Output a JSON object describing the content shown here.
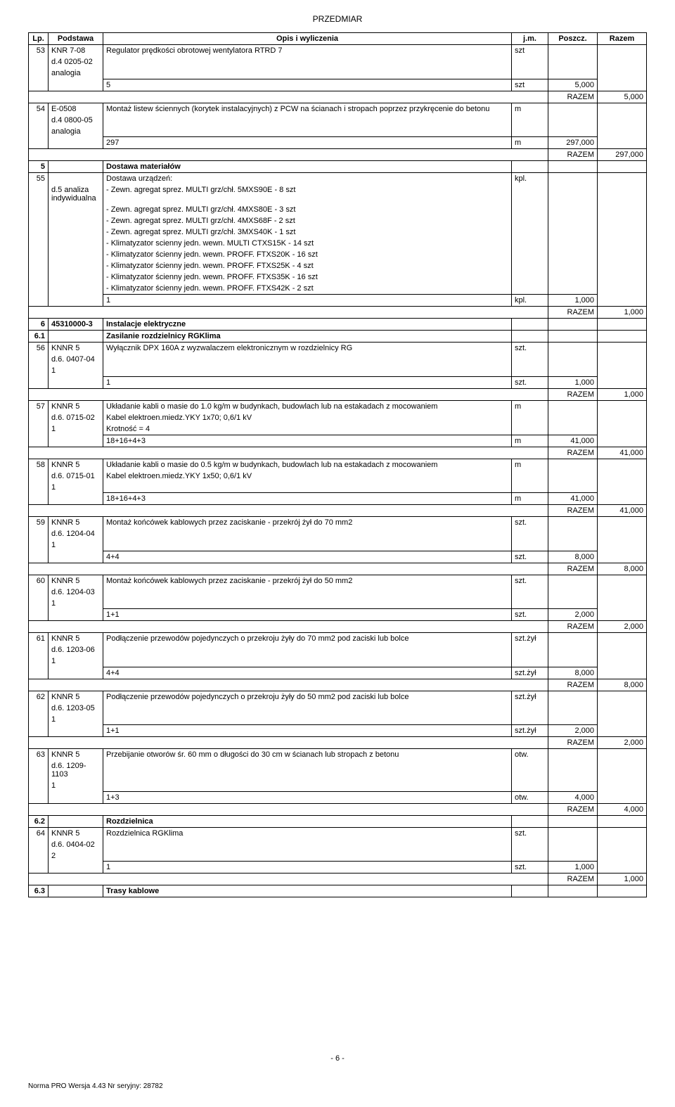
{
  "header": {
    "title": "PRZEDMIAR"
  },
  "columns": {
    "lp": "Lp.",
    "podstawa": "Podstawa",
    "opis": "Opis i wyliczenia",
    "jm": "j.m.",
    "poszcz": "Poszcz.",
    "razem": "Razem"
  },
  "razem_label": "RAZEM",
  "rows": [
    {
      "type": "item-head",
      "lp": "53",
      "pod": "KNR 7-08",
      "opis": "Regulator prędkości obrotowej wentylatora RTRD 7",
      "jm": "szt"
    },
    {
      "type": "pod-cont",
      "pod": "d.4 0205-02"
    },
    {
      "type": "pod-cont",
      "pod": "analogia"
    },
    {
      "type": "calc",
      "opis": "5",
      "jm": "szt",
      "poszcz": "5,000"
    },
    {
      "type": "razem",
      "value": "5,000"
    },
    {
      "type": "item-head",
      "lp": "54",
      "pod": "E-0508",
      "opis": "Montaż listew ściennych (korytek instalacyjnych) z PCW na ścianach i stropach poprzez przykręcenie do betonu",
      "jm": "m"
    },
    {
      "type": "pod-cont",
      "pod": "d.4 0800-05"
    },
    {
      "type": "pod-cont",
      "pod": "analogia"
    },
    {
      "type": "calc",
      "opis": "297",
      "jm": "m",
      "poszcz": "297,000"
    },
    {
      "type": "razem",
      "value": "297,000"
    },
    {
      "type": "section",
      "lp": "5",
      "opis": "Dostawa materiałów"
    },
    {
      "type": "item-head",
      "lp": "55",
      "pod": "",
      "opis": "Dostawa urządzeń:",
      "jm": "kpl."
    },
    {
      "type": "pod-opis-cont",
      "pod": "d.5 analiza indywidualna",
      "opis": "- Zewn. agregat sprez. MULTI grz/chł. 5MXS90E -  8 szt"
    },
    {
      "type": "opis-cont",
      "opis": "- Zewn. agregat sprez. MULTI grz/chł. 4MXS80E -  3 szt"
    },
    {
      "type": "opis-cont",
      "opis": "- Zewn. agregat sprez. MULTI grz/chł. 4MXS68F -  2 szt"
    },
    {
      "type": "opis-cont",
      "opis": "- Zewn. agregat sprez. MULTI grz/chł. 3MXS40K -  1 szt"
    },
    {
      "type": "opis-cont",
      "opis": "- Klimatyzator scienny jedn. wewn. MULTI CTXS15K - 14 szt"
    },
    {
      "type": "opis-cont",
      "opis": "- Klimatyzator ścienny jedn. wewn. PROFF. FTXS20K - 16 szt"
    },
    {
      "type": "opis-cont",
      "opis": "- Klimatyzator ścienny jedn. wewn. PROFF. FTXS25K -  4 szt"
    },
    {
      "type": "opis-cont",
      "opis": "- Klimatyzator ścienny jedn. wewn. PROFF. FTXS35K - 16 szt"
    },
    {
      "type": "opis-cont",
      "opis": "- Klimatyzator ścienny jedn. wewn. PROFF. FTXS42K - 2 szt"
    },
    {
      "type": "calc",
      "opis": "1",
      "jm": "kpl.",
      "poszcz": "1,000"
    },
    {
      "type": "razem",
      "value": "1,000"
    },
    {
      "type": "section",
      "lp": "6",
      "pod": "45310000-3",
      "opis": "Instalacje elektryczne"
    },
    {
      "type": "section",
      "lp": "6.1",
      "opis": "Zasilanie rozdzielnicy RGKlima"
    },
    {
      "type": "item-head",
      "lp": "56",
      "pod": "KNNR 5",
      "opis": "Wyłącznik DPX 160A z wyzwalaczem elektronicznym w rozdzielnicy RG",
      "jm": "szt."
    },
    {
      "type": "pod-cont",
      "pod": "d.6. 0407-04"
    },
    {
      "type": "pod-cont",
      "pod": "1"
    },
    {
      "type": "calc",
      "opis": "1",
      "jm": "szt.",
      "poszcz": "1,000"
    },
    {
      "type": "razem",
      "value": "1,000"
    },
    {
      "type": "item-head",
      "lp": "57",
      "pod": "KNNR 5",
      "opis": "Układanie kabli o masie do 1.0 kg/m w budynkach, budowlach lub na estakadach z mocowaniem",
      "jm": "m"
    },
    {
      "type": "pod-opis-cont",
      "pod": "d.6. 0715-02",
      "opis": "Kabel elektroen.miedz.YKY 1x70; 0,6/1 kV"
    },
    {
      "type": "pod-opis-cont",
      "pod": "1",
      "opis": "Krotność = 4"
    },
    {
      "type": "calc",
      "opis": "18+16+4+3",
      "jm": "m",
      "poszcz": "41,000"
    },
    {
      "type": "razem",
      "value": "41,000"
    },
    {
      "type": "item-head",
      "lp": "58",
      "pod": "KNNR 5",
      "opis": "Układanie kabli o masie do 0.5 kg/m w budynkach, budowlach lub na estakadach z mocowaniem",
      "jm": "m"
    },
    {
      "type": "pod-opis-cont",
      "pod": "d.6. 0715-01",
      "opis": "Kabel elektroen.miedz.YKY 1x50; 0,6/1 kV"
    },
    {
      "type": "pod-cont",
      "pod": "1"
    },
    {
      "type": "calc",
      "opis": "18+16+4+3",
      "jm": "m",
      "poszcz": "41,000"
    },
    {
      "type": "razem",
      "value": "41,000"
    },
    {
      "type": "item-head",
      "lp": "59",
      "pod": "KNNR 5",
      "opis": "Montaż końcówek kablowych przez zaciskanie - przekrój żył do 70 mm2",
      "jm": "szt."
    },
    {
      "type": "pod-cont",
      "pod": "d.6. 1204-04"
    },
    {
      "type": "pod-cont",
      "pod": "1"
    },
    {
      "type": "calc",
      "opis": "4+4",
      "jm": "szt.",
      "poszcz": "8,000"
    },
    {
      "type": "razem",
      "value": "8,000"
    },
    {
      "type": "item-head",
      "lp": "60",
      "pod": "KNNR 5",
      "opis": "Montaż końcówek kablowych przez zaciskanie - przekrój żył do 50 mm2",
      "jm": "szt."
    },
    {
      "type": "pod-cont",
      "pod": "d.6. 1204-03"
    },
    {
      "type": "pod-cont",
      "pod": "1"
    },
    {
      "type": "calc",
      "opis": "1+1",
      "jm": "szt.",
      "poszcz": "2,000"
    },
    {
      "type": "razem",
      "value": "2,000"
    },
    {
      "type": "item-head",
      "lp": "61",
      "pod": "KNNR 5",
      "opis": "Podłączenie przewodów pojedynczych o przekroju żyły do 70 mm2 pod zaciski lub bolce",
      "jm": "szt.żył"
    },
    {
      "type": "pod-cont",
      "pod": "d.6. 1203-06"
    },
    {
      "type": "pod-cont",
      "pod": "1"
    },
    {
      "type": "calc",
      "opis": "4+4",
      "jm": "szt.żył",
      "poszcz": "8,000"
    },
    {
      "type": "razem",
      "value": "8,000"
    },
    {
      "type": "item-head",
      "lp": "62",
      "pod": "KNNR 5",
      "opis": "Podłączenie przewodów pojedynczych o przekroju żyły do 50 mm2 pod zaciski lub bolce",
      "jm": "szt.żył"
    },
    {
      "type": "pod-cont",
      "pod": "d.6. 1203-05"
    },
    {
      "type": "pod-cont",
      "pod": "1"
    },
    {
      "type": "calc",
      "opis": "1+1",
      "jm": "szt.żył",
      "poszcz": "2,000"
    },
    {
      "type": "razem",
      "value": "2,000"
    },
    {
      "type": "item-head",
      "lp": "63",
      "pod": "KNNR 5",
      "opis": "Przebijanie otworów śr. 60 mm o długości do 30 cm w ścianach lub stropach z betonu",
      "jm": "otw."
    },
    {
      "type": "pod-cont",
      "pod": "d.6. 1209-1103"
    },
    {
      "type": "pod-cont",
      "pod": "1"
    },
    {
      "type": "calc",
      "opis": "1+3",
      "jm": "otw.",
      "poszcz": "4,000"
    },
    {
      "type": "razem",
      "value": "4,000"
    },
    {
      "type": "section",
      "lp": "6.2",
      "opis": "Rozdzielnica"
    },
    {
      "type": "item-head",
      "lp": "64",
      "pod": "KNNR 5",
      "opis": "Rozdzielnica RGKlima",
      "jm": "szt."
    },
    {
      "type": "pod-cont",
      "pod": "d.6. 0404-02"
    },
    {
      "type": "pod-cont",
      "pod": "2"
    },
    {
      "type": "calc",
      "opis": "1",
      "jm": "szt.",
      "poszcz": "1,000"
    },
    {
      "type": "razem",
      "value": "1,000"
    },
    {
      "type": "section",
      "lp": "6.3",
      "opis": "Trasy kablowe"
    }
  ],
  "footer": {
    "page": "- 6 -",
    "norma": "Norma PRO Wersja 4.43 Nr seryjny: 28782"
  }
}
